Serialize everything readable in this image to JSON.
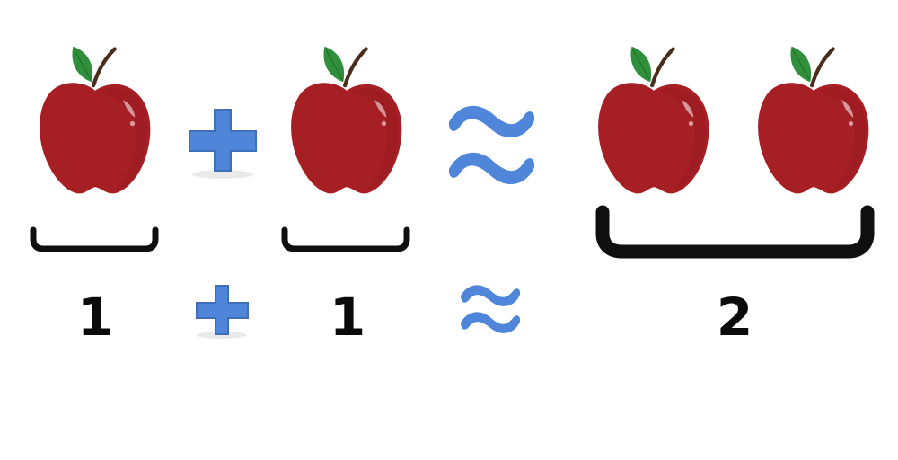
{
  "equation": {
    "pictorial": {
      "left_apples": 1,
      "right_apples": 1,
      "result_apples": 2,
      "plus_icon": "plus-icon",
      "approx_icon": "approximately-equal-icon"
    },
    "numeric": {
      "left_value": "1",
      "right_value": "1",
      "result_value": "2",
      "plus_icon": "plus-icon",
      "approx_icon": "approximately-equal-icon"
    }
  },
  "colors": {
    "apple": "#a61f24",
    "apple_dark": "#8d171b",
    "leaf": "#2f8f3a",
    "stem": "#4a2d1a",
    "symbol_blue": "#4f86d9",
    "symbol_blue_dark": "#3f6fb8",
    "bracket": "#0f0f0f"
  }
}
